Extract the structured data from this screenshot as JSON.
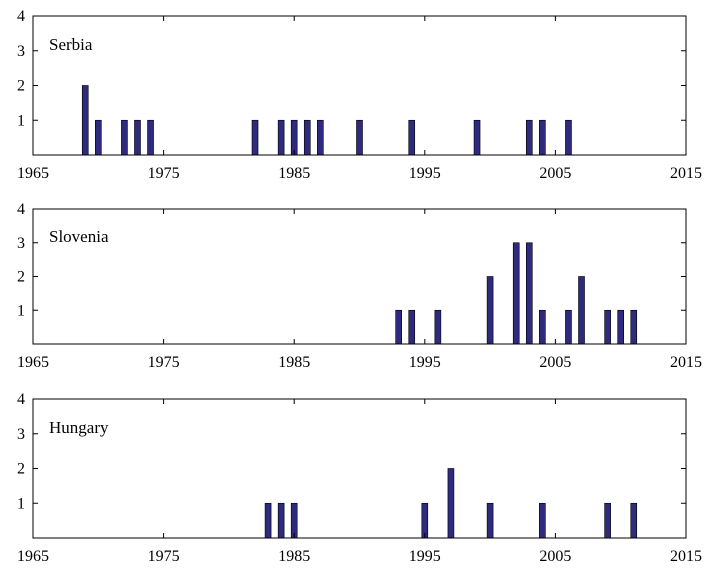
{
  "chart_data": [
    {
      "type": "bar",
      "label": "Serbia",
      "xlim": [
        1965,
        2015
      ],
      "ylim": [
        0,
        4
      ],
      "xticks": [
        1965,
        1975,
        1985,
        1995,
        2005,
        2015
      ],
      "yticks": [
        1,
        2,
        3,
        4
      ],
      "x": [
        1969,
        1970,
        1972,
        1973,
        1974,
        1982,
        1984,
        1985,
        1986,
        1987,
        1990,
        1994,
        1999,
        2003,
        2004,
        2006
      ],
      "values": [
        2,
        1,
        1,
        1,
        1,
        1,
        1,
        1,
        1,
        1,
        1,
        1,
        1,
        1,
        1,
        1
      ]
    },
    {
      "type": "bar",
      "label": "Slovenia",
      "xlim": [
        1965,
        2015
      ],
      "ylim": [
        0,
        4
      ],
      "xticks": [
        1965,
        1975,
        1985,
        1995,
        2005,
        2015
      ],
      "yticks": [
        1,
        2,
        3,
        4
      ],
      "x": [
        1993,
        1994,
        1996,
        2000,
        2002,
        2003,
        2004,
        2006,
        2007,
        2009,
        2010,
        2011
      ],
      "values": [
        1,
        1,
        1,
        2,
        3,
        3,
        1,
        1,
        2,
        1,
        1,
        1
      ]
    },
    {
      "type": "bar",
      "label": "Hungary",
      "xlim": [
        1965,
        2015
      ],
      "ylim": [
        0,
        4
      ],
      "xticks": [
        1965,
        1975,
        1985,
        1995,
        2005,
        2015
      ],
      "yticks": [
        1,
        2,
        3,
        4
      ],
      "x": [
        1983,
        1984,
        1985,
        1995,
        1997,
        2000,
        2004,
        2009,
        2011
      ],
      "values": [
        1,
        1,
        1,
        1,
        2,
        1,
        1,
        1,
        1
      ]
    }
  ],
  "colors": {
    "bar": "#2e2a7e",
    "axis": "#000000"
  }
}
